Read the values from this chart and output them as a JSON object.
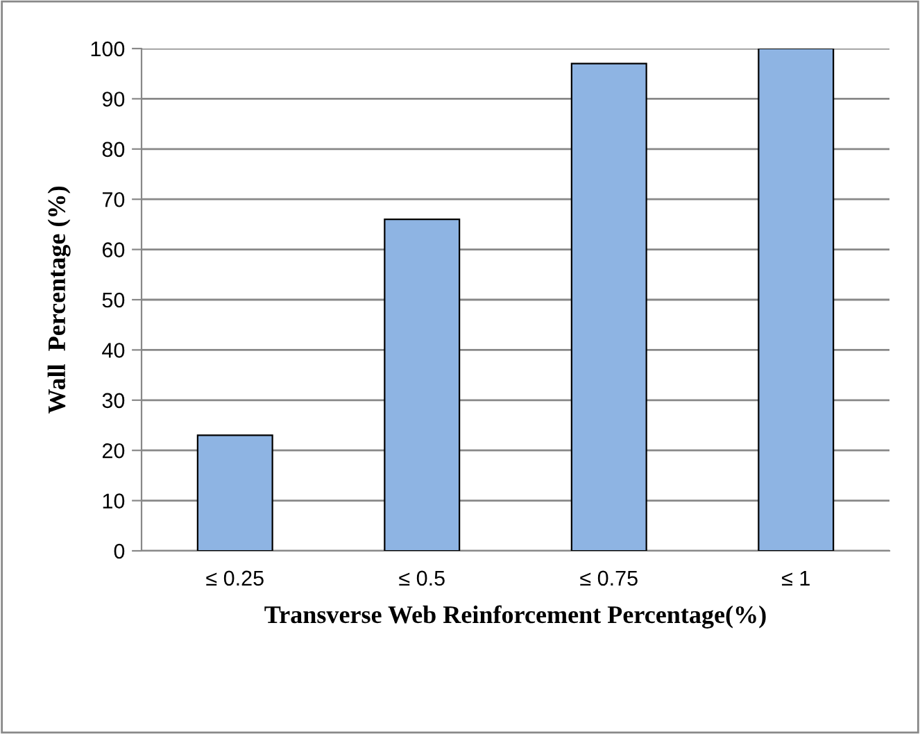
{
  "chart_data": {
    "type": "bar",
    "xlabel": "Transverse Web Reinforcement Percentage(%)",
    "ylabel": "Wall  Percentage (%)",
    "categories": [
      "≤ 0.25",
      "≤ 0.5",
      "≤ 0.75",
      "≤ 1"
    ],
    "values": [
      23,
      66,
      97,
      100
    ],
    "color": "#8eb4e3",
    "ylim": [
      0,
      100
    ],
    "yticks": [
      0,
      10,
      20,
      30,
      40,
      50,
      60,
      70,
      80,
      90,
      100
    ],
    "grid": "y"
  }
}
